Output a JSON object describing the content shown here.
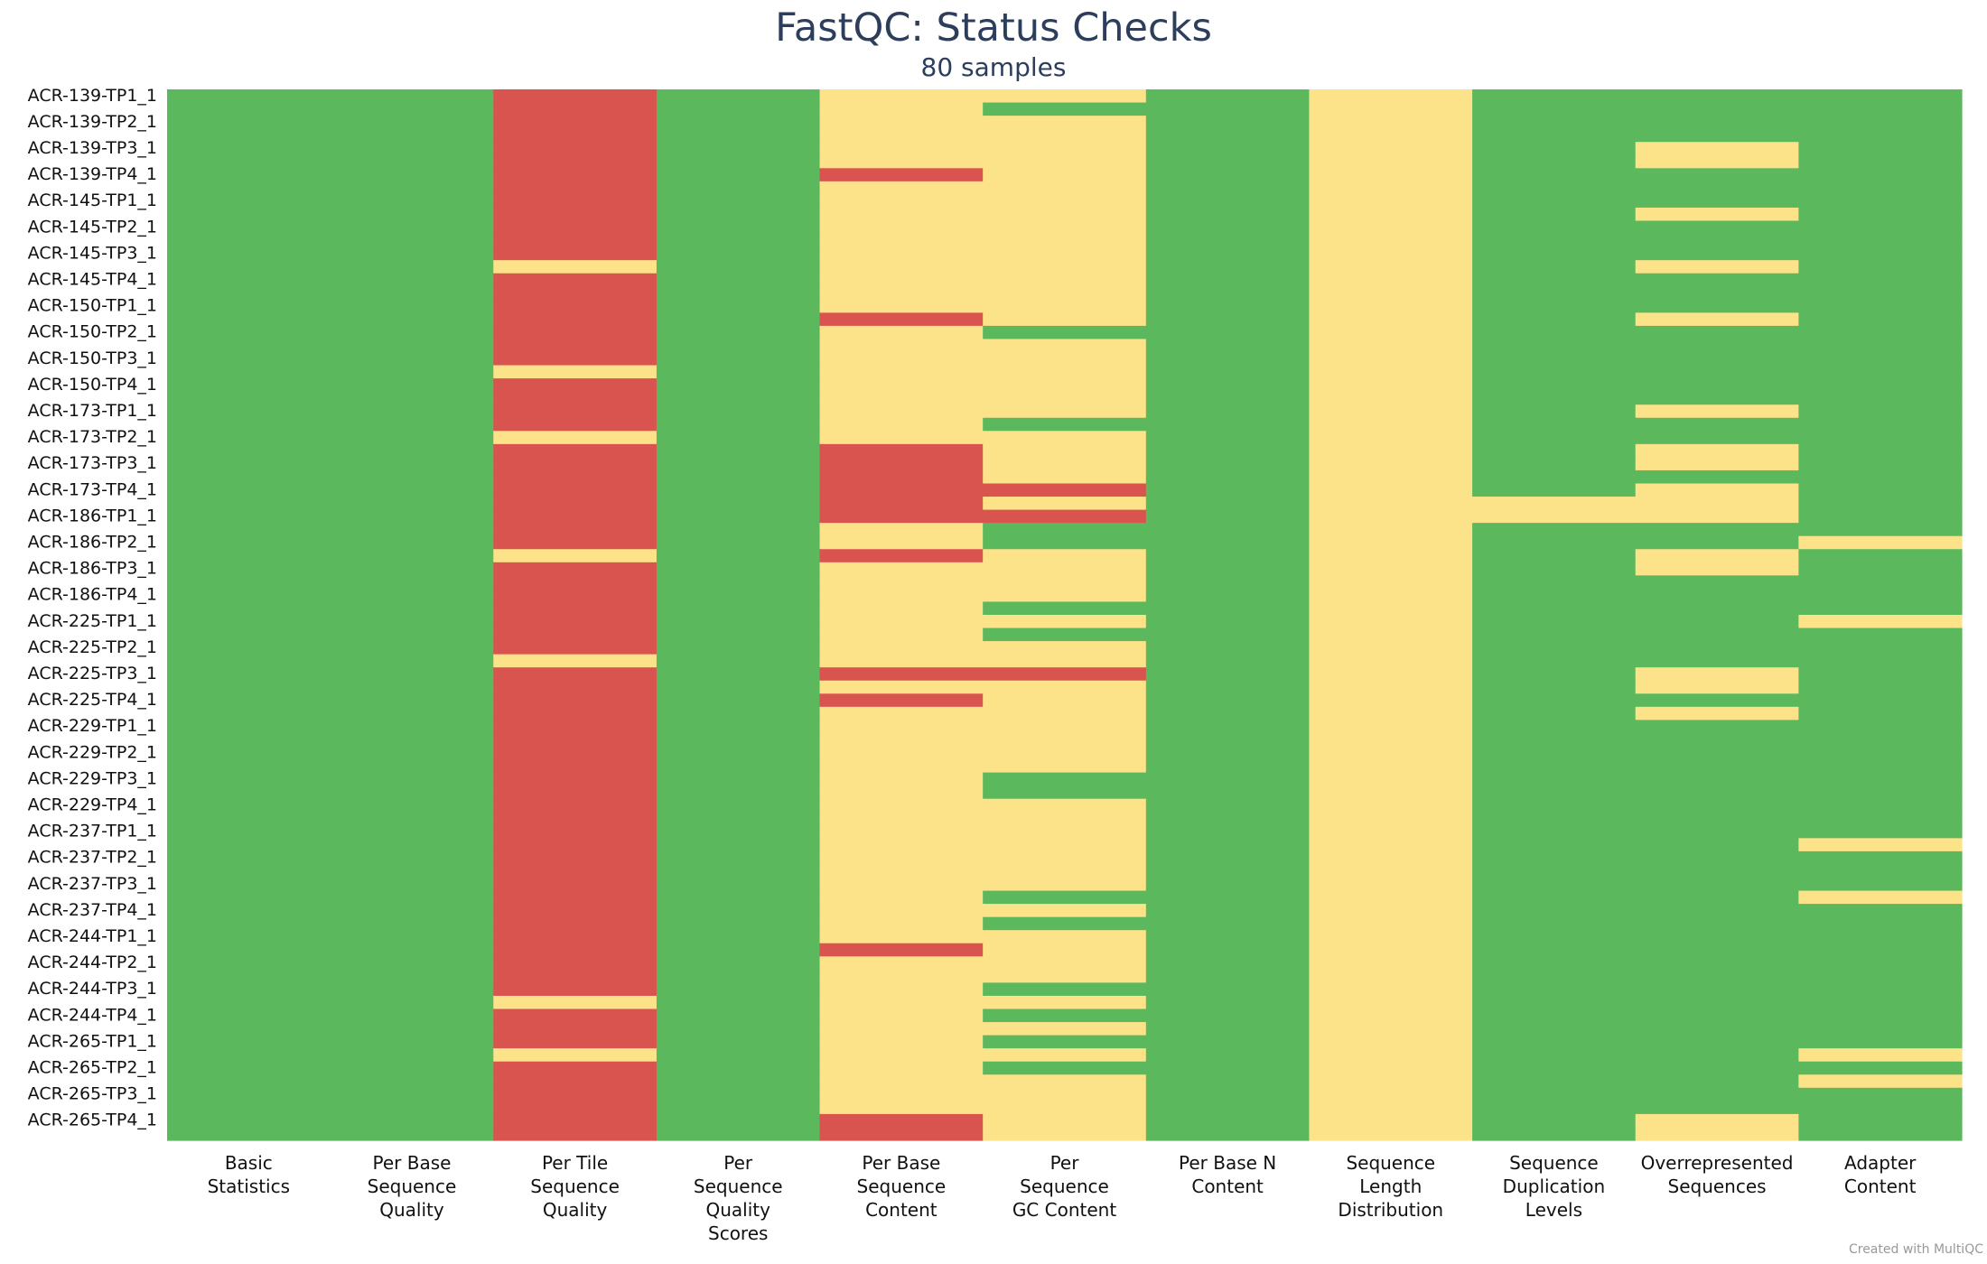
{
  "header": {
    "title": "FastQC: Status Checks",
    "subtitle": "80 samples"
  },
  "footer": {
    "credit": "Created with MultiQC"
  },
  "colors": {
    "pass": "#5cb85c",
    "warn": "#fce38a",
    "fail": "#d9534f"
  },
  "chart_data": {
    "type": "heatmap",
    "title": "FastQC: Status Checks",
    "subtitle": "80 samples",
    "row_label_every": 2,
    "status_legend": {
      "2": "pass",
      "1": "warn",
      "0": "fail"
    },
    "columns": [
      [
        "Basic",
        "Statistics"
      ],
      [
        "Per Base",
        "Sequence",
        "Quality"
      ],
      [
        "Per Tile",
        "Sequence",
        "Quality"
      ],
      [
        "Per",
        "Sequence",
        "Quality",
        "Scores"
      ],
      [
        "Per Base",
        "Sequence",
        "Content"
      ],
      [
        "Per",
        "Sequence",
        "GC Content"
      ],
      [
        "Per Base N",
        "Content"
      ],
      [
        "Sequence",
        "Length",
        "Distribution"
      ],
      [
        "Sequence",
        "Duplication",
        "Levels"
      ],
      [
        "Overrepresented",
        "Sequences"
      ],
      [
        "Adapter",
        "Content"
      ]
    ],
    "labeled_samples": [
      "ACR-139-TP1_1",
      "ACR-139-TP2_1",
      "ACR-139-TP3_1",
      "ACR-139-TP4_1",
      "ACR-145-TP1_1",
      "ACR-145-TP2_1",
      "ACR-145-TP3_1",
      "ACR-145-TP4_1",
      "ACR-150-TP1_1",
      "ACR-150-TP2_1",
      "ACR-150-TP3_1",
      "ACR-150-TP4_1",
      "ACR-173-TP1_1",
      "ACR-173-TP2_1",
      "ACR-173-TP3_1",
      "ACR-173-TP4_1",
      "ACR-186-TP1_1",
      "ACR-186-TP2_1",
      "ACR-186-TP3_1",
      "ACR-186-TP4_1",
      "ACR-225-TP1_1",
      "ACR-225-TP2_1",
      "ACR-225-TP3_1",
      "ACR-225-TP4_1",
      "ACR-229-TP1_1",
      "ACR-229-TP2_1",
      "ACR-229-TP3_1",
      "ACR-229-TP4_1",
      "ACR-237-TP1_1",
      "ACR-237-TP2_1",
      "ACR-237-TP3_1",
      "ACR-237-TP4_1",
      "ACR-244-TP1_1",
      "ACR-244-TP2_1",
      "ACR-244-TP3_1",
      "ACR-244-TP4_1",
      "ACR-265-TP1_1",
      "ACR-265-TP2_1",
      "ACR-265-TP3_1",
      "ACR-265-TP4_1"
    ],
    "status_rows": [
      [
        2,
        2,
        0,
        2,
        1,
        1,
        2,
        1,
        2,
        2,
        2
      ],
      [
        2,
        2,
        0,
        2,
        1,
        2,
        2,
        1,
        2,
        2,
        2
      ],
      [
        2,
        2,
        0,
        2,
        1,
        1,
        2,
        1,
        2,
        2,
        2
      ],
      [
        2,
        2,
        0,
        2,
        1,
        1,
        2,
        1,
        2,
        2,
        2
      ],
      [
        2,
        2,
        0,
        2,
        1,
        1,
        2,
        1,
        2,
        1,
        2
      ],
      [
        2,
        2,
        0,
        2,
        1,
        1,
        2,
        1,
        2,
        1,
        2
      ],
      [
        2,
        2,
        0,
        2,
        0,
        1,
        2,
        1,
        2,
        2,
        2
      ],
      [
        2,
        2,
        0,
        2,
        1,
        1,
        2,
        1,
        2,
        2,
        2
      ],
      [
        2,
        2,
        0,
        2,
        1,
        1,
        2,
        1,
        2,
        2,
        2
      ],
      [
        2,
        2,
        0,
        2,
        1,
        1,
        2,
        1,
        2,
        1,
        2
      ],
      [
        2,
        2,
        0,
        2,
        1,
        1,
        2,
        1,
        2,
        2,
        2
      ],
      [
        2,
        2,
        0,
        2,
        1,
        1,
        2,
        1,
        2,
        2,
        2
      ],
      [
        2,
        2,
        0,
        2,
        1,
        1,
        2,
        1,
        2,
        2,
        2
      ],
      [
        2,
        2,
        1,
        2,
        1,
        1,
        2,
        1,
        2,
        1,
        2
      ],
      [
        2,
        2,
        0,
        2,
        1,
        1,
        2,
        1,
        2,
        2,
        2
      ],
      [
        2,
        2,
        0,
        2,
        1,
        1,
        2,
        1,
        2,
        2,
        2
      ],
      [
        2,
        2,
        0,
        2,
        1,
        1,
        2,
        1,
        2,
        2,
        2
      ],
      [
        2,
        2,
        0,
        2,
        0,
        1,
        2,
        1,
        2,
        1,
        2
      ],
      [
        2,
        2,
        0,
        2,
        1,
        2,
        2,
        1,
        2,
        2,
        2
      ],
      [
        2,
        2,
        0,
        2,
        1,
        1,
        2,
        1,
        2,
        2,
        2
      ],
      [
        2,
        2,
        0,
        2,
        1,
        1,
        2,
        1,
        2,
        2,
        2
      ],
      [
        2,
        2,
        1,
        2,
        1,
        1,
        2,
        1,
        2,
        2,
        2
      ],
      [
        2,
        2,
        0,
        2,
        1,
        1,
        2,
        1,
        2,
        2,
        2
      ],
      [
        2,
        2,
        0,
        2,
        1,
        1,
        2,
        1,
        2,
        2,
        2
      ],
      [
        2,
        2,
        0,
        2,
        1,
        1,
        2,
        1,
        2,
        1,
        2
      ],
      [
        2,
        2,
        0,
        2,
        1,
        2,
        2,
        1,
        2,
        2,
        2
      ],
      [
        2,
        2,
        1,
        2,
        1,
        1,
        2,
        1,
        2,
        2,
        2
      ],
      [
        2,
        2,
        0,
        2,
        0,
        1,
        2,
        1,
        2,
        1,
        2
      ],
      [
        2,
        2,
        0,
        2,
        0,
        1,
        2,
        1,
        2,
        1,
        2
      ],
      [
        2,
        2,
        0,
        2,
        0,
        1,
        2,
        1,
        2,
        2,
        2
      ],
      [
        2,
        2,
        0,
        2,
        0,
        0,
        2,
        1,
        2,
        1,
        2
      ],
      [
        2,
        2,
        0,
        2,
        0,
        1,
        2,
        1,
        1,
        1,
        2
      ],
      [
        2,
        2,
        0,
        2,
        0,
        0,
        2,
        1,
        1,
        1,
        2
      ],
      [
        2,
        2,
        0,
        2,
        1,
        2,
        2,
        1,
        2,
        2,
        2
      ],
      [
        2,
        2,
        0,
        2,
        1,
        2,
        2,
        1,
        2,
        2,
        1
      ],
      [
        2,
        2,
        1,
        2,
        0,
        1,
        2,
        1,
        2,
        1,
        2
      ],
      [
        2,
        2,
        0,
        2,
        1,
        1,
        2,
        1,
        2,
        1,
        2
      ],
      [
        2,
        2,
        0,
        2,
        1,
        1,
        2,
        1,
        2,
        2,
        2
      ],
      [
        2,
        2,
        0,
        2,
        1,
        1,
        2,
        1,
        2,
        2,
        2
      ],
      [
        2,
        2,
        0,
        2,
        1,
        2,
        2,
        1,
        2,
        2,
        2
      ],
      [
        2,
        2,
        0,
        2,
        1,
        1,
        2,
        1,
        2,
        2,
        1
      ],
      [
        2,
        2,
        0,
        2,
        1,
        2,
        2,
        1,
        2,
        2,
        2
      ],
      [
        2,
        2,
        0,
        2,
        1,
        1,
        2,
        1,
        2,
        2,
        2
      ],
      [
        2,
        2,
        1,
        2,
        1,
        1,
        2,
        1,
        2,
        2,
        2
      ],
      [
        2,
        2,
        0,
        2,
        0,
        0,
        2,
        1,
        2,
        1,
        2
      ],
      [
        2,
        2,
        0,
        2,
        1,
        1,
        2,
        1,
        2,
        1,
        2
      ],
      [
        2,
        2,
        0,
        2,
        0,
        1,
        2,
        1,
        2,
        2,
        2
      ],
      [
        2,
        2,
        0,
        2,
        1,
        1,
        2,
        1,
        2,
        1,
        2
      ],
      [
        2,
        2,
        0,
        2,
        1,
        1,
        2,
        1,
        2,
        2,
        2
      ],
      [
        2,
        2,
        0,
        2,
        1,
        1,
        2,
        1,
        2,
        2,
        2
      ],
      [
        2,
        2,
        0,
        2,
        1,
        1,
        2,
        1,
        2,
        2,
        2
      ],
      [
        2,
        2,
        0,
        2,
        1,
        1,
        2,
        1,
        2,
        2,
        2
      ],
      [
        2,
        2,
        0,
        2,
        1,
        2,
        2,
        1,
        2,
        2,
        2
      ],
      [
        2,
        2,
        0,
        2,
        1,
        2,
        2,
        1,
        2,
        2,
        2
      ],
      [
        2,
        2,
        0,
        2,
        1,
        1,
        2,
        1,
        2,
        2,
        2
      ],
      [
        2,
        2,
        0,
        2,
        1,
        1,
        2,
        1,
        2,
        2,
        2
      ],
      [
        2,
        2,
        0,
        2,
        1,
        1,
        2,
        1,
        2,
        2,
        2
      ],
      [
        2,
        2,
        0,
        2,
        1,
        1,
        2,
        1,
        2,
        2,
        1
      ],
      [
        2,
        2,
        0,
        2,
        1,
        1,
        2,
        1,
        2,
        2,
        2
      ],
      [
        2,
        2,
        0,
        2,
        1,
        1,
        2,
        1,
        2,
        2,
        2
      ],
      [
        2,
        2,
        0,
        2,
        1,
        1,
        2,
        1,
        2,
        2,
        2
      ],
      [
        2,
        2,
        0,
        2,
        1,
        2,
        2,
        1,
        2,
        2,
        1
      ],
      [
        2,
        2,
        0,
        2,
        1,
        1,
        2,
        1,
        2,
        2,
        2
      ],
      [
        2,
        2,
        0,
        2,
        1,
        2,
        2,
        1,
        2,
        2,
        2
      ],
      [
        2,
        2,
        0,
        2,
        1,
        1,
        2,
        1,
        2,
        2,
        2
      ],
      [
        2,
        2,
        0,
        2,
        0,
        1,
        2,
        1,
        2,
        2,
        2
      ],
      [
        2,
        2,
        0,
        2,
        1,
        1,
        2,
        1,
        2,
        2,
        2
      ],
      [
        2,
        2,
        0,
        2,
        1,
        1,
        2,
        1,
        2,
        2,
        2
      ],
      [
        2,
        2,
        0,
        2,
        1,
        2,
        2,
        1,
        2,
        2,
        2
      ],
      [
        2,
        2,
        1,
        2,
        1,
        1,
        2,
        1,
        2,
        2,
        2
      ],
      [
        2,
        2,
        0,
        2,
        1,
        2,
        2,
        1,
        2,
        2,
        2
      ],
      [
        2,
        2,
        0,
        2,
        1,
        1,
        2,
        1,
        2,
        2,
        2
      ],
      [
        2,
        2,
        0,
        2,
        1,
        2,
        2,
        1,
        2,
        2,
        2
      ],
      [
        2,
        2,
        1,
        2,
        1,
        1,
        2,
        1,
        2,
        2,
        1
      ],
      [
        2,
        2,
        0,
        2,
        1,
        2,
        2,
        1,
        2,
        2,
        2
      ],
      [
        2,
        2,
        0,
        2,
        1,
        1,
        2,
        1,
        2,
        2,
        1
      ],
      [
        2,
        2,
        0,
        2,
        1,
        1,
        2,
        1,
        2,
        2,
        2
      ],
      [
        2,
        2,
        0,
        2,
        1,
        1,
        2,
        1,
        2,
        2,
        2
      ],
      [
        2,
        2,
        0,
        2,
        0,
        1,
        2,
        1,
        2,
        1,
        2
      ],
      [
        2,
        2,
        0,
        2,
        0,
        1,
        2,
        1,
        2,
        1,
        2
      ]
    ]
  }
}
